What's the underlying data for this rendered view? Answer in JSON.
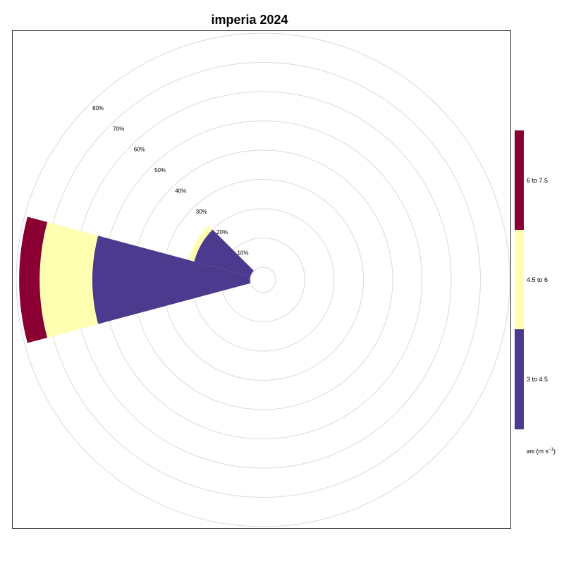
{
  "chart_data": {
    "type": "wind-rose",
    "title": "imperia 2024",
    "radial_ticks": [
      "10%",
      "20%",
      "30%",
      "40%",
      "50%",
      "60%",
      "70%",
      "80%"
    ],
    "radial_max": 80,
    "grid": true,
    "legend_position": "right",
    "legend_title_text": "ws (m s",
    "legend_title_sup": "−1",
    "legend_title_close": ")",
    "speed_bins": [
      {
        "label": "3 to 4.5",
        "color": "#4B3A8E"
      },
      {
        "label": "4.5 to 6",
        "color": "#FFFFB2"
      },
      {
        "label": "6 to 7.5",
        "color": "#8B0032"
      }
    ],
    "directions": [
      {
        "direction_deg": 270,
        "cumulative": [
          54,
          72,
          79
        ]
      },
      {
        "direction_deg": 300,
        "cumulative": [
          20,
          22,
          22
        ]
      }
    ]
  }
}
